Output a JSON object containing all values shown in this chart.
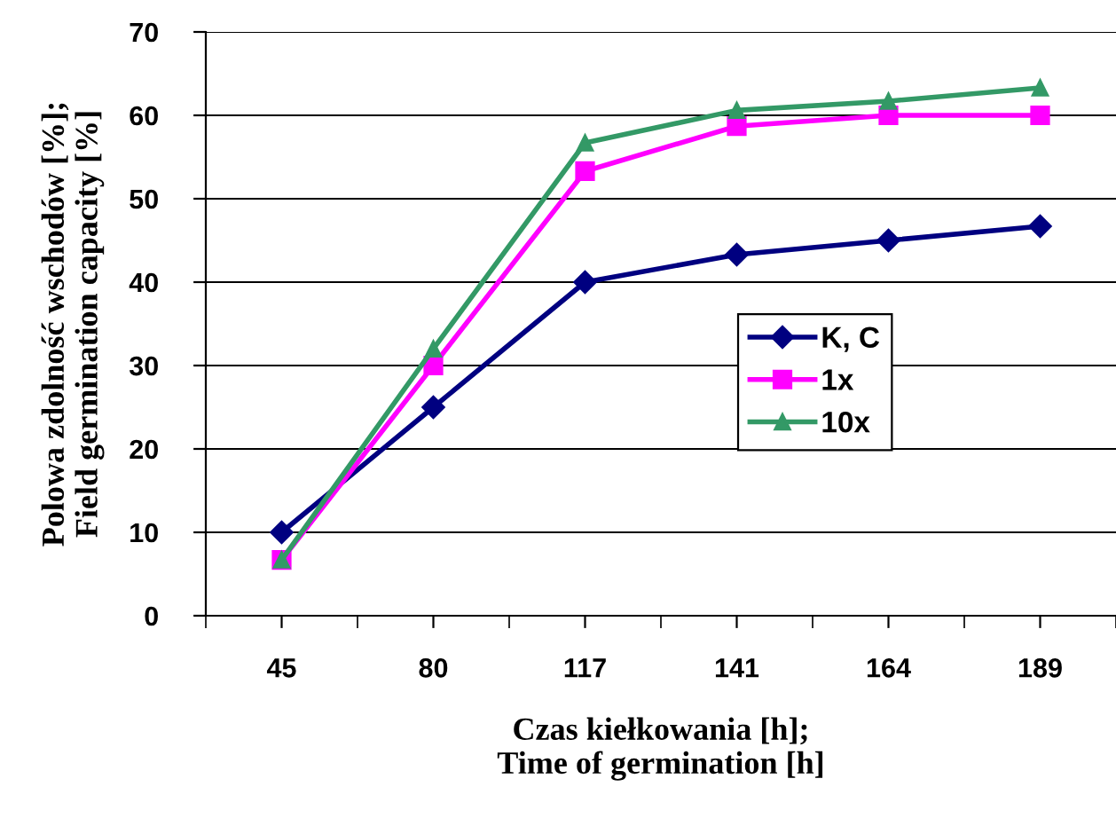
{
  "chart_data": {
    "type": "line",
    "xlabel": "Czas kiełkowania [h];\nTime of germination [h]",
    "ylabel": "Polowa zdolność wschodów [%];\nField germination capacity [%]",
    "categories": [
      "45",
      "80",
      "117",
      "141",
      "164",
      "189"
    ],
    "series": [
      {
        "name": "K, C",
        "color": "#000080",
        "marker": "diamond",
        "values": [
          10,
          25,
          40,
          43.3,
          45,
          46.7
        ]
      },
      {
        "name": "1x",
        "color": "#ff00ff",
        "marker": "square",
        "values": [
          6.7,
          30,
          53.3,
          58.7,
          60,
          60
        ]
      },
      {
        "name": "10x",
        "color": "#339966",
        "marker": "triangle",
        "values": [
          6.7,
          32,
          56.7,
          60.6,
          61.7,
          63.3
        ]
      }
    ],
    "ylim": [
      0,
      70
    ],
    "yticks": [
      0,
      10,
      20,
      30,
      40,
      50,
      60,
      70
    ],
    "grid": "y",
    "legend": "right",
    "line_style": "solid"
  }
}
